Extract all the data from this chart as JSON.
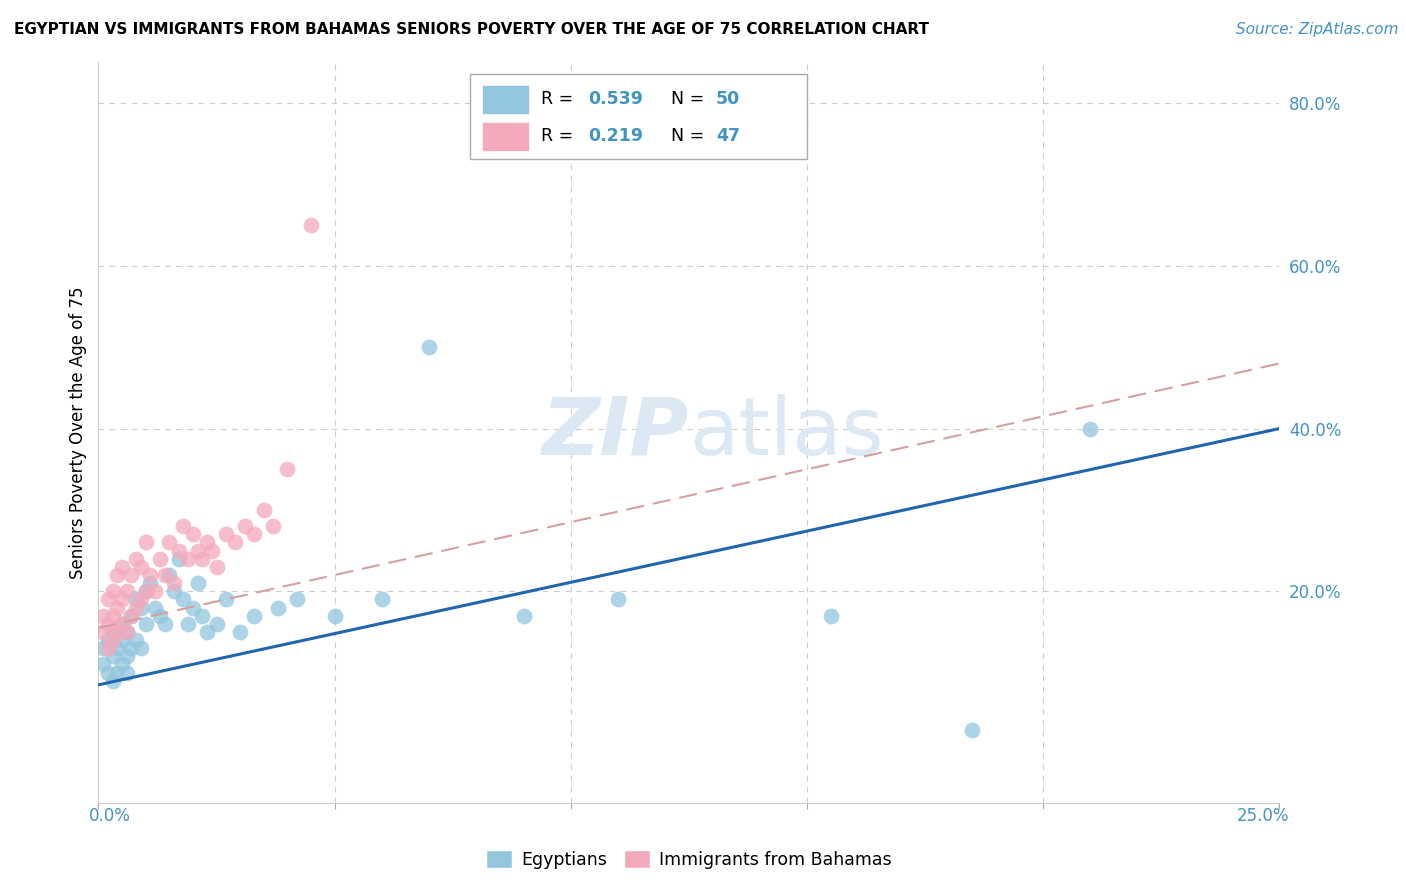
{
  "title": "EGYPTIAN VS IMMIGRANTS FROM BAHAMAS SENIORS POVERTY OVER THE AGE OF 75 CORRELATION CHART",
  "source": "Source: ZipAtlas.com",
  "ylabel": "Seniors Poverty Over the Age of 75",
  "right_yticks": [
    "80.0%",
    "60.0%",
    "40.0%",
    "20.0%"
  ],
  "right_ytick_vals": [
    0.8,
    0.6,
    0.4,
    0.2
  ],
  "blue_color": "#92c5de",
  "pink_color": "#f4a9bb",
  "line_blue": "#2166ac",
  "line_pink": "#d6604d",
  "text_blue": "#4393c3",
  "watermark_color": "#dce9f5",
  "xlim": [
    0.0,
    0.25
  ],
  "ylim": [
    -0.06,
    0.85
  ],
  "egyptians_x": [
    0.001,
    0.001,
    0.002,
    0.002,
    0.003,
    0.003,
    0.003,
    0.004,
    0.004,
    0.005,
    0.005,
    0.005,
    0.006,
    0.006,
    0.006,
    0.007,
    0.007,
    0.008,
    0.008,
    0.009,
    0.009,
    0.01,
    0.01,
    0.011,
    0.012,
    0.013,
    0.014,
    0.015,
    0.016,
    0.017,
    0.018,
    0.019,
    0.02,
    0.021,
    0.022,
    0.023,
    0.025,
    0.027,
    0.03,
    0.033,
    0.038,
    0.042,
    0.05,
    0.06,
    0.07,
    0.09,
    0.11,
    0.155,
    0.185,
    0.21
  ],
  "egyptians_y": [
    0.13,
    0.11,
    0.1,
    0.14,
    0.09,
    0.12,
    0.15,
    0.1,
    0.13,
    0.11,
    0.14,
    0.16,
    0.12,
    0.15,
    0.1,
    0.13,
    0.17,
    0.14,
    0.19,
    0.13,
    0.18,
    0.16,
    0.2,
    0.21,
    0.18,
    0.17,
    0.16,
    0.22,
    0.2,
    0.24,
    0.19,
    0.16,
    0.18,
    0.21,
    0.17,
    0.15,
    0.16,
    0.19,
    0.15,
    0.17,
    0.18,
    0.19,
    0.17,
    0.19,
    0.5,
    0.17,
    0.19,
    0.17,
    0.03,
    0.4
  ],
  "bahamas_x": [
    0.001,
    0.001,
    0.002,
    0.002,
    0.002,
    0.003,
    0.003,
    0.003,
    0.004,
    0.004,
    0.004,
    0.005,
    0.005,
    0.005,
    0.006,
    0.006,
    0.007,
    0.007,
    0.008,
    0.008,
    0.009,
    0.009,
    0.01,
    0.01,
    0.011,
    0.012,
    0.013,
    0.014,
    0.015,
    0.016,
    0.017,
    0.018,
    0.019,
    0.02,
    0.021,
    0.022,
    0.023,
    0.024,
    0.025,
    0.027,
    0.029,
    0.031,
    0.033,
    0.035,
    0.037,
    0.04,
    0.045
  ],
  "bahamas_y": [
    0.15,
    0.17,
    0.13,
    0.16,
    0.19,
    0.14,
    0.17,
    0.2,
    0.15,
    0.18,
    0.22,
    0.16,
    0.19,
    0.23,
    0.15,
    0.2,
    0.17,
    0.22,
    0.18,
    0.24,
    0.19,
    0.23,
    0.2,
    0.26,
    0.22,
    0.2,
    0.24,
    0.22,
    0.26,
    0.21,
    0.25,
    0.28,
    0.24,
    0.27,
    0.25,
    0.24,
    0.26,
    0.25,
    0.23,
    0.27,
    0.26,
    0.28,
    0.27,
    0.3,
    0.28,
    0.35,
    0.65
  ],
  "blue_line_x": [
    0.0,
    0.25
  ],
  "blue_line_y": [
    0.085,
    0.4
  ],
  "pink_line_x": [
    0.0,
    0.25
  ],
  "pink_line_y": [
    0.155,
    0.48
  ]
}
